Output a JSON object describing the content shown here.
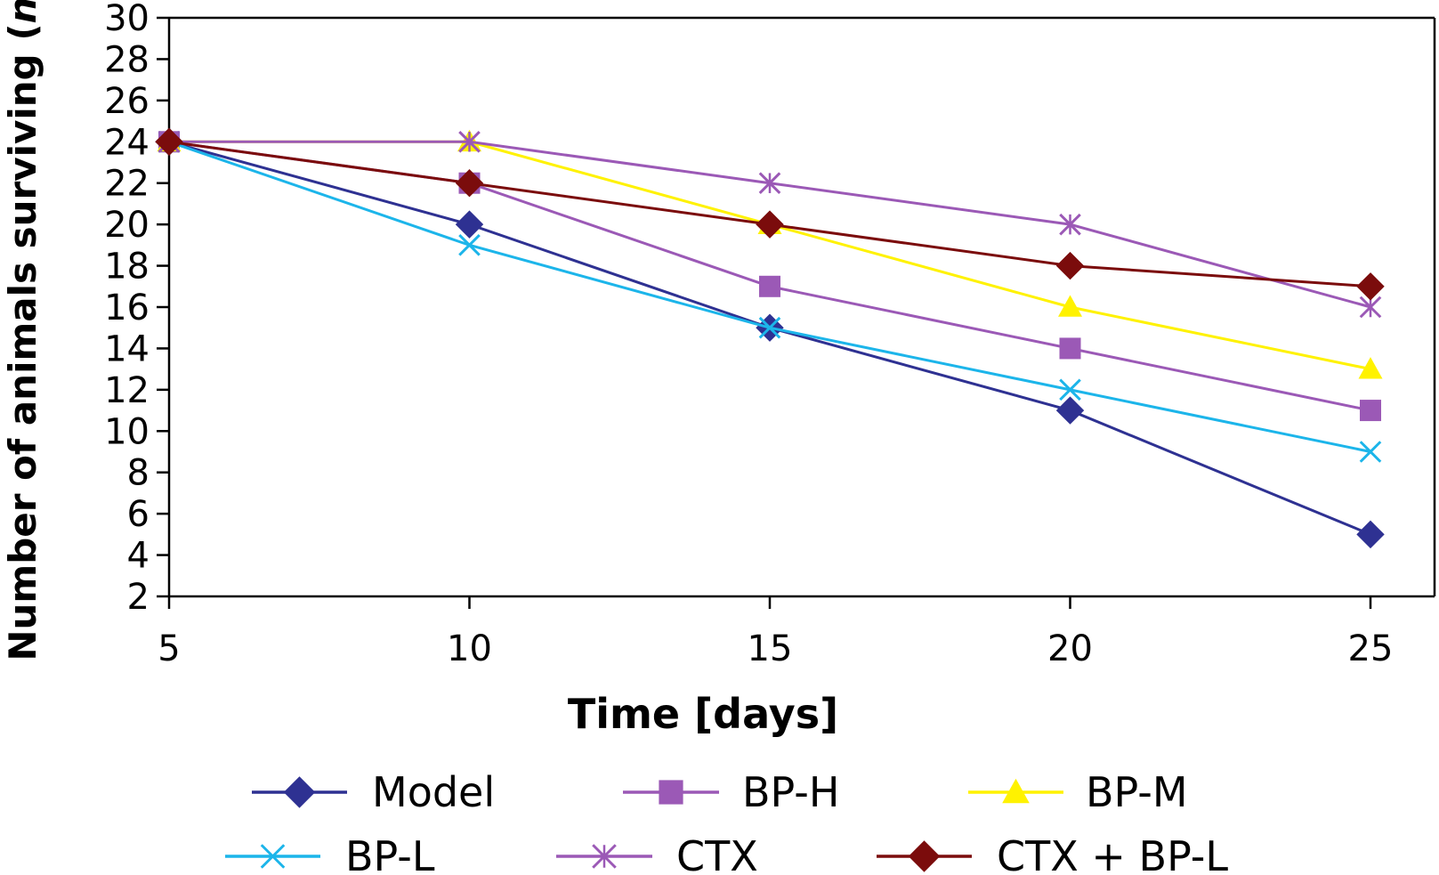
{
  "chart_data": {
    "type": "line",
    "xlabel": "Time [days]",
    "ylabel_main": "Number of animals surviving (",
    "ylabel_italic": "n",
    "ylabel_close": ")",
    "x": [
      5,
      10,
      15,
      20,
      25
    ],
    "xlim": [
      5,
      25
    ],
    "ylim": [
      2,
      30
    ],
    "yticks": [
      2,
      4,
      6,
      8,
      10,
      12,
      14,
      16,
      18,
      20,
      22,
      24,
      26,
      28,
      30
    ],
    "xticks": [
      5,
      10,
      15,
      20,
      25
    ],
    "grid": false,
    "legend_position": "bottom",
    "series": [
      {
        "name": "Model",
        "values": [
          24,
          20,
          15,
          11,
          5
        ],
        "color": "#2e3192",
        "marker": "diamond"
      },
      {
        "name": "BP-H",
        "values": [
          24,
          22,
          17,
          14,
          11
        ],
        "color": "#9b59b6",
        "marker": "square"
      },
      {
        "name": "BP-M",
        "values": [
          24,
          24,
          20,
          16,
          13
        ],
        "color": "#fff200",
        "marker": "triangle"
      },
      {
        "name": "BP-L",
        "values": [
          24,
          19,
          15,
          12,
          9
        ],
        "color": "#1cb5ea",
        "marker": "x"
      },
      {
        "name": "CTX",
        "values": [
          24,
          24,
          22,
          20,
          16
        ],
        "color": "#9b59b6",
        "marker": "star"
      },
      {
        "name": "CTX + BP-L",
        "values": [
          24,
          22,
          20,
          18,
          17
        ],
        "color": "#7b0c0c",
        "marker": "diamond"
      }
    ]
  }
}
